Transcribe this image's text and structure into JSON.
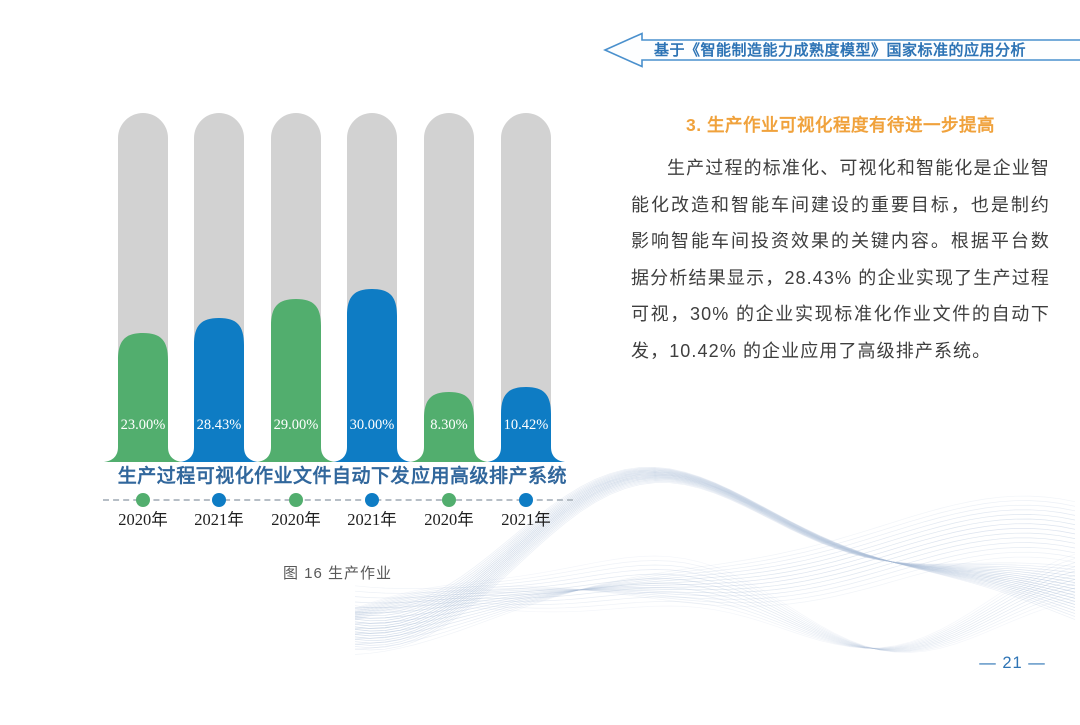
{
  "header": {
    "title": "基于《智能制造能力成熟度模型》国家标准的应用分析"
  },
  "article": {
    "heading": "3. 生产作业可视化程度有待进一步提高",
    "body": "生产过程的标准化、可视化和智能化是企业智能化改造和智能车间建设的重要目标，也是制约影响智能车间投资效果的关键内容。根据平台数据分析结果显示，28.43% 的企业实现了生产过程可视，30% 的企业实现标准化作业文件的自动下发，10.42% 的企业应用了高级排产系统。"
  },
  "chart_data": {
    "type": "bar",
    "title": "图 16 生产作业",
    "groups": [
      "生产过程可视化",
      "作业文件自动下发",
      "应用高级排产系统"
    ],
    "categories": [
      "2020年",
      "2021年",
      "2020年",
      "2021年",
      "2020年",
      "2021年"
    ],
    "values": [
      23.0,
      28.43,
      29.0,
      30.0,
      8.3,
      10.42
    ],
    "value_labels": [
      "23.00%",
      "28.43%",
      "29.00%",
      "30.00%",
      "8.30%",
      "10.42%"
    ],
    "series_colors": {
      "2020年": "#52ae6e",
      "2021年": "#0e7cc4"
    },
    "track_color": "#d2d2d2",
    "ylim": [
      0,
      100
    ],
    "grid": false,
    "legend_position": "dots-below-axis",
    "fill_height_frac": [
      0.37,
      0.413,
      0.467,
      0.496,
      0.2,
      0.215
    ]
  },
  "footer": {
    "page_number": "— 21 —"
  },
  "theme": {
    "accent_blue": "#2e74b5",
    "heading_orange": "#f0a23c",
    "bar_green": "#52ae6e",
    "bar_blue": "#0e7cc4",
    "track_gray": "#d2d2d2",
    "banner_outline": "#4a90cd"
  }
}
